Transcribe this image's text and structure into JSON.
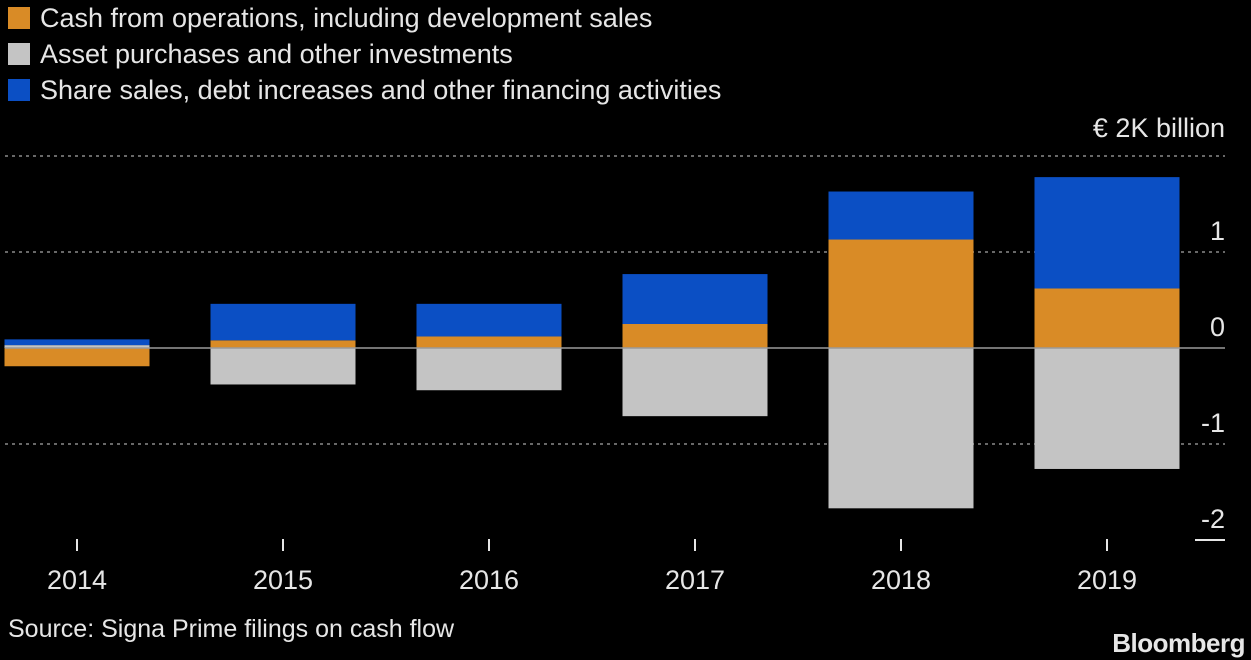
{
  "chart_data": {
    "type": "bar",
    "stacked": true,
    "categories": [
      "2014",
      "2015",
      "2016",
      "2017",
      "2018",
      "2019"
    ],
    "series": [
      {
        "name": "Cash from operations, including development sales",
        "color": "#d98b26",
        "values": [
          -0.19,
          0.08,
          0.12,
          0.25,
          1.13,
          0.62
        ]
      },
      {
        "name": "Asset purchases and other investments",
        "color": "#c4c4c4",
        "values": [
          0.03,
          -0.38,
          -0.44,
          -0.71,
          -1.67,
          -1.26
        ]
      },
      {
        "name": "Share sales, debt increases and other financing activities",
        "color": "#0b4fc4",
        "values": [
          0.06,
          0.38,
          0.34,
          0.52,
          0.5,
          1.16
        ]
      }
    ],
    "y_unit_label": "€ 2K billion",
    "y_ticks": [
      "1",
      "0",
      "-1",
      "-2"
    ],
    "ylim": [
      -2,
      2
    ],
    "grid": "dotted horizontal",
    "legend_position": "top-left"
  },
  "source": "Source: Signa Prime filings on cash flow",
  "brand": "Bloomberg"
}
